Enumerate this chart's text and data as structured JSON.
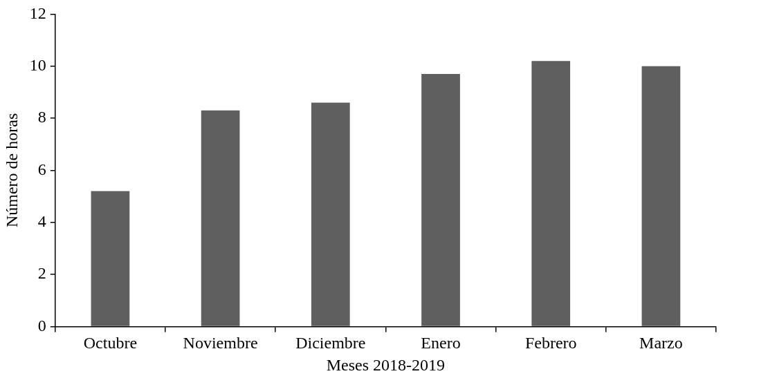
{
  "chart_data": {
    "type": "bar",
    "xlabel": "Meses 2018-2019",
    "ylabel": "Número de horas",
    "categories": [
      "Octubre",
      "Noviembre",
      "Diciembre",
      "Enero",
      "Febrero",
      "Marzo"
    ],
    "values": [
      5.2,
      8.3,
      8.6,
      9.7,
      10.2,
      10.0
    ],
    "color": "#5f5f5f",
    "ylim": [
      0,
      12
    ],
    "yticks": [
      0,
      2,
      4,
      6,
      8,
      10,
      12
    ],
    "grid": false,
    "legend": false
  }
}
